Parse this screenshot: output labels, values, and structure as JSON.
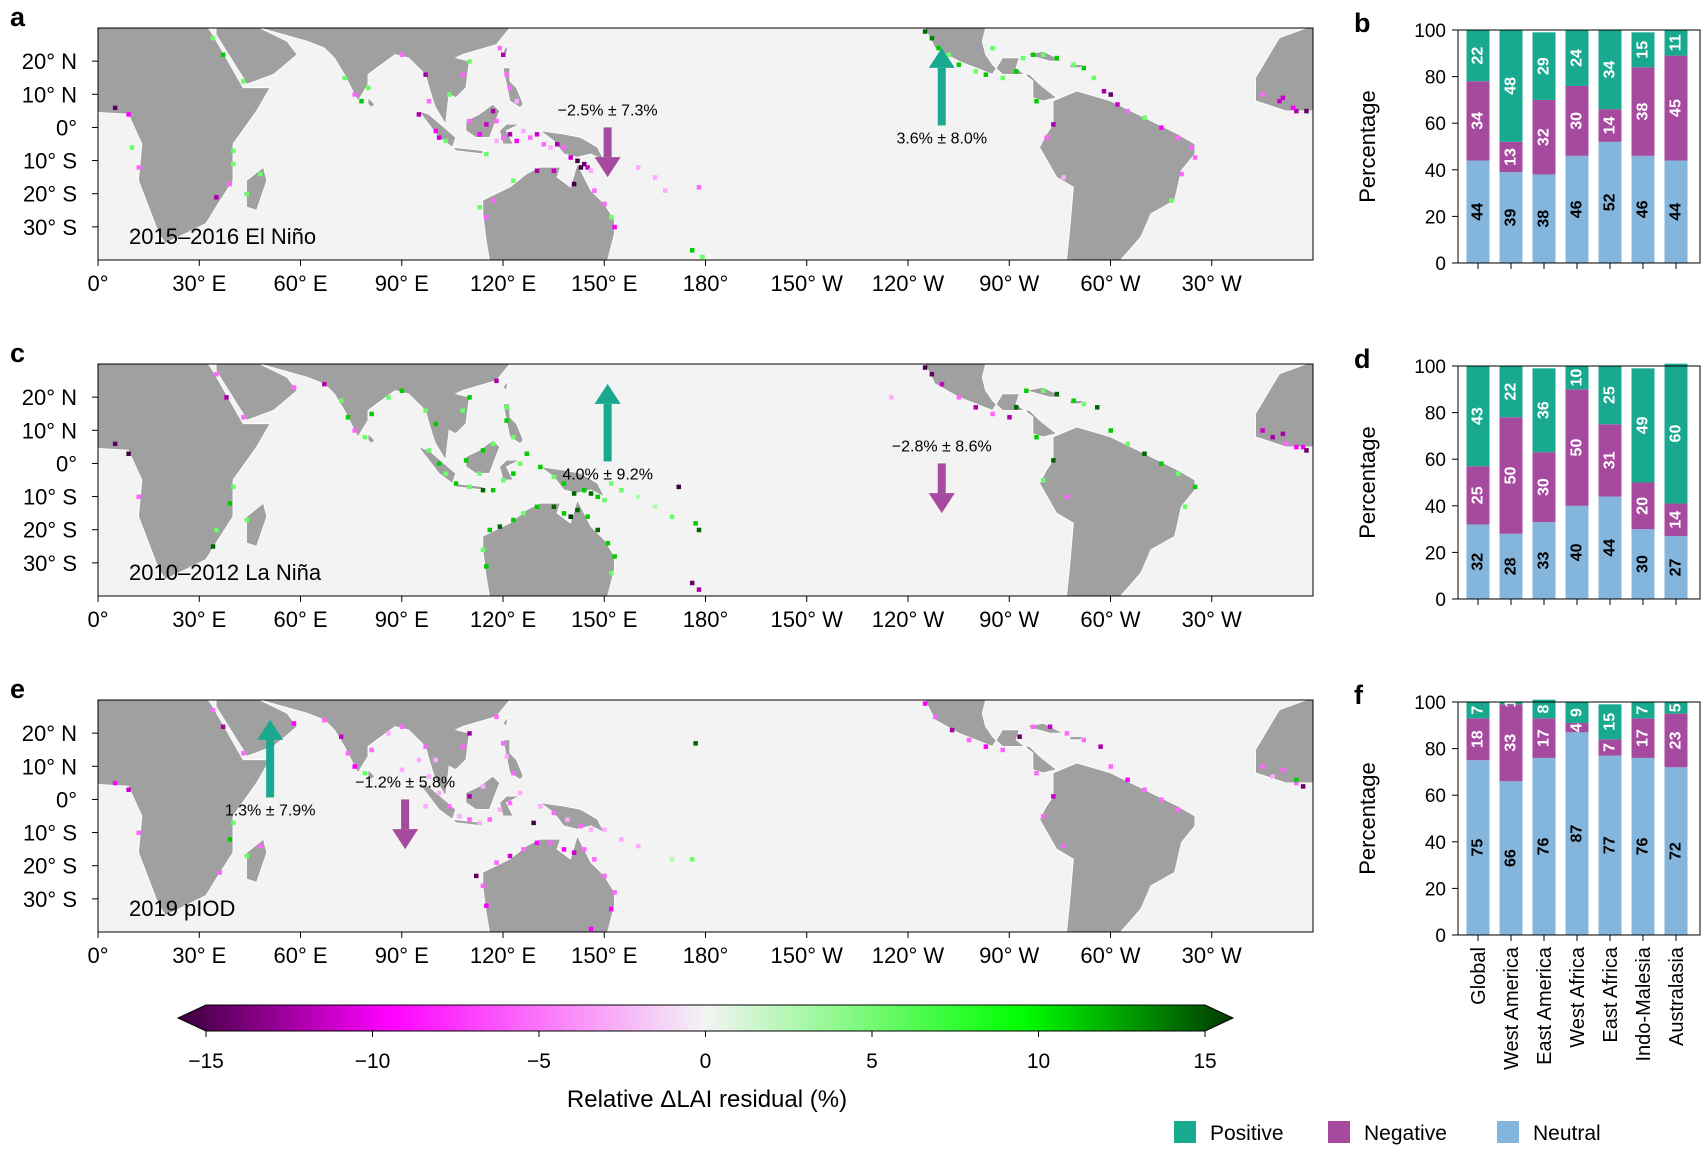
{
  "colors": {
    "positive": "#19a98f",
    "negative": "#a54a9e",
    "neutral": "#83b5dd",
    "land": "#a0a0a0",
    "ocean": "#f3f3f3"
  },
  "maps": [
    {
      "panel_letter": "a",
      "event_label": "2015–2016 El Niño",
      "arrows": [
        {
          "text": "−2.5% ± 7.3%",
          "direction": "down",
          "lon": 151,
          "lat": -8
        },
        {
          "text": "3.6% ± 8.0%",
          "direction": "up",
          "lon": 250,
          "lat": 8
        }
      ]
    },
    {
      "panel_letter": "c",
      "event_label": "2010–2012 La Niña",
      "arrows": [
        {
          "text": "4.0% ± 9.2%",
          "direction": "up",
          "lon": 151,
          "lat": 8
        },
        {
          "text": "−2.8% ± 8.6%",
          "direction": "down",
          "lon": 250,
          "lat": -8
        }
      ]
    },
    {
      "panel_letter": "e",
      "event_label": "2019 pIOD",
      "arrows": [
        {
          "text": "1.3% ± 7.9%",
          "direction": "up",
          "lon": 51,
          "lat": 8
        },
        {
          "text": "−1.2% ± 5.8%",
          "direction": "down",
          "lon": 91,
          "lat": -8
        }
      ]
    }
  ],
  "map_axes": {
    "lat_ticks": [
      "20° N",
      "10° N",
      "0°",
      "10° S",
      "20° S",
      "30° S"
    ],
    "lon_ticks": [
      "0°",
      "30° E",
      "60° E",
      "90° E",
      "120° E",
      "150° E",
      "180°",
      "150° W",
      "120° W",
      "90° W",
      "60° W",
      "30° W"
    ]
  },
  "colorbar": {
    "label": "Relative ΔLAI residual (%)",
    "ticks": [
      "−15",
      "−10",
      "−5",
      "0",
      "5",
      "10",
      "15"
    ],
    "range": [
      -15,
      15
    ]
  },
  "legend": {
    "items": [
      "Positive",
      "Negative",
      "Neutral"
    ]
  },
  "chart_data": [
    {
      "panel_letter": "b",
      "type": "bar",
      "stacked": true,
      "ylabel": "Percentage",
      "ylim": [
        0,
        100
      ],
      "yticks": [
        "0",
        "20",
        "40",
        "60",
        "80",
        "100"
      ],
      "categories": [
        "Global",
        "West America",
        "East America",
        "West Africa",
        "East Africa",
        "Indo-Malesia",
        "Australasia"
      ],
      "series": [
        {
          "name": "Neutral",
          "values": [
            44,
            39,
            38,
            46,
            52,
            46,
            44
          ]
        },
        {
          "name": "Negative",
          "values": [
            34,
            13,
            32,
            30,
            14,
            38,
            45
          ]
        },
        {
          "name": "Positive",
          "values": [
            22,
            48,
            29,
            24,
            34,
            15,
            11
          ]
        }
      ]
    },
    {
      "panel_letter": "d",
      "type": "bar",
      "stacked": true,
      "ylabel": "Percentage",
      "ylim": [
        0,
        100
      ],
      "yticks": [
        "0",
        "20",
        "40",
        "60",
        "80",
        "100"
      ],
      "categories": [
        "Global",
        "West America",
        "East America",
        "West Africa",
        "East Africa",
        "Indo-Malesia",
        "Australasia"
      ],
      "series": [
        {
          "name": "Neutral",
          "values": [
            32,
            28,
            33,
            40,
            44,
            30,
            27
          ]
        },
        {
          "name": "Negative",
          "values": [
            25,
            50,
            30,
            50,
            31,
            20,
            14
          ]
        },
        {
          "name": "Positive",
          "values": [
            43,
            22,
            36,
            10,
            25,
            49,
            60
          ]
        }
      ]
    },
    {
      "panel_letter": "f",
      "type": "bar",
      "stacked": true,
      "ylabel": "Percentage",
      "ylim": [
        0,
        100
      ],
      "yticks": [
        "0",
        "20",
        "40",
        "60",
        "80",
        "100"
      ],
      "categories": [
        "Global",
        "West America",
        "East America",
        "West Africa",
        "East Africa",
        "Indo-Malesia",
        "Australasia"
      ],
      "series": [
        {
          "name": "Neutral",
          "values": [
            75,
            66,
            76,
            87,
            77,
            76,
            72
          ]
        },
        {
          "name": "Negative",
          "values": [
            18,
            33,
            17,
            4,
            7,
            17,
            23
          ]
        },
        {
          "name": "Positive",
          "values": [
            7,
            1,
            8,
            9,
            15,
            7,
            5
          ]
        }
      ]
    }
  ]
}
